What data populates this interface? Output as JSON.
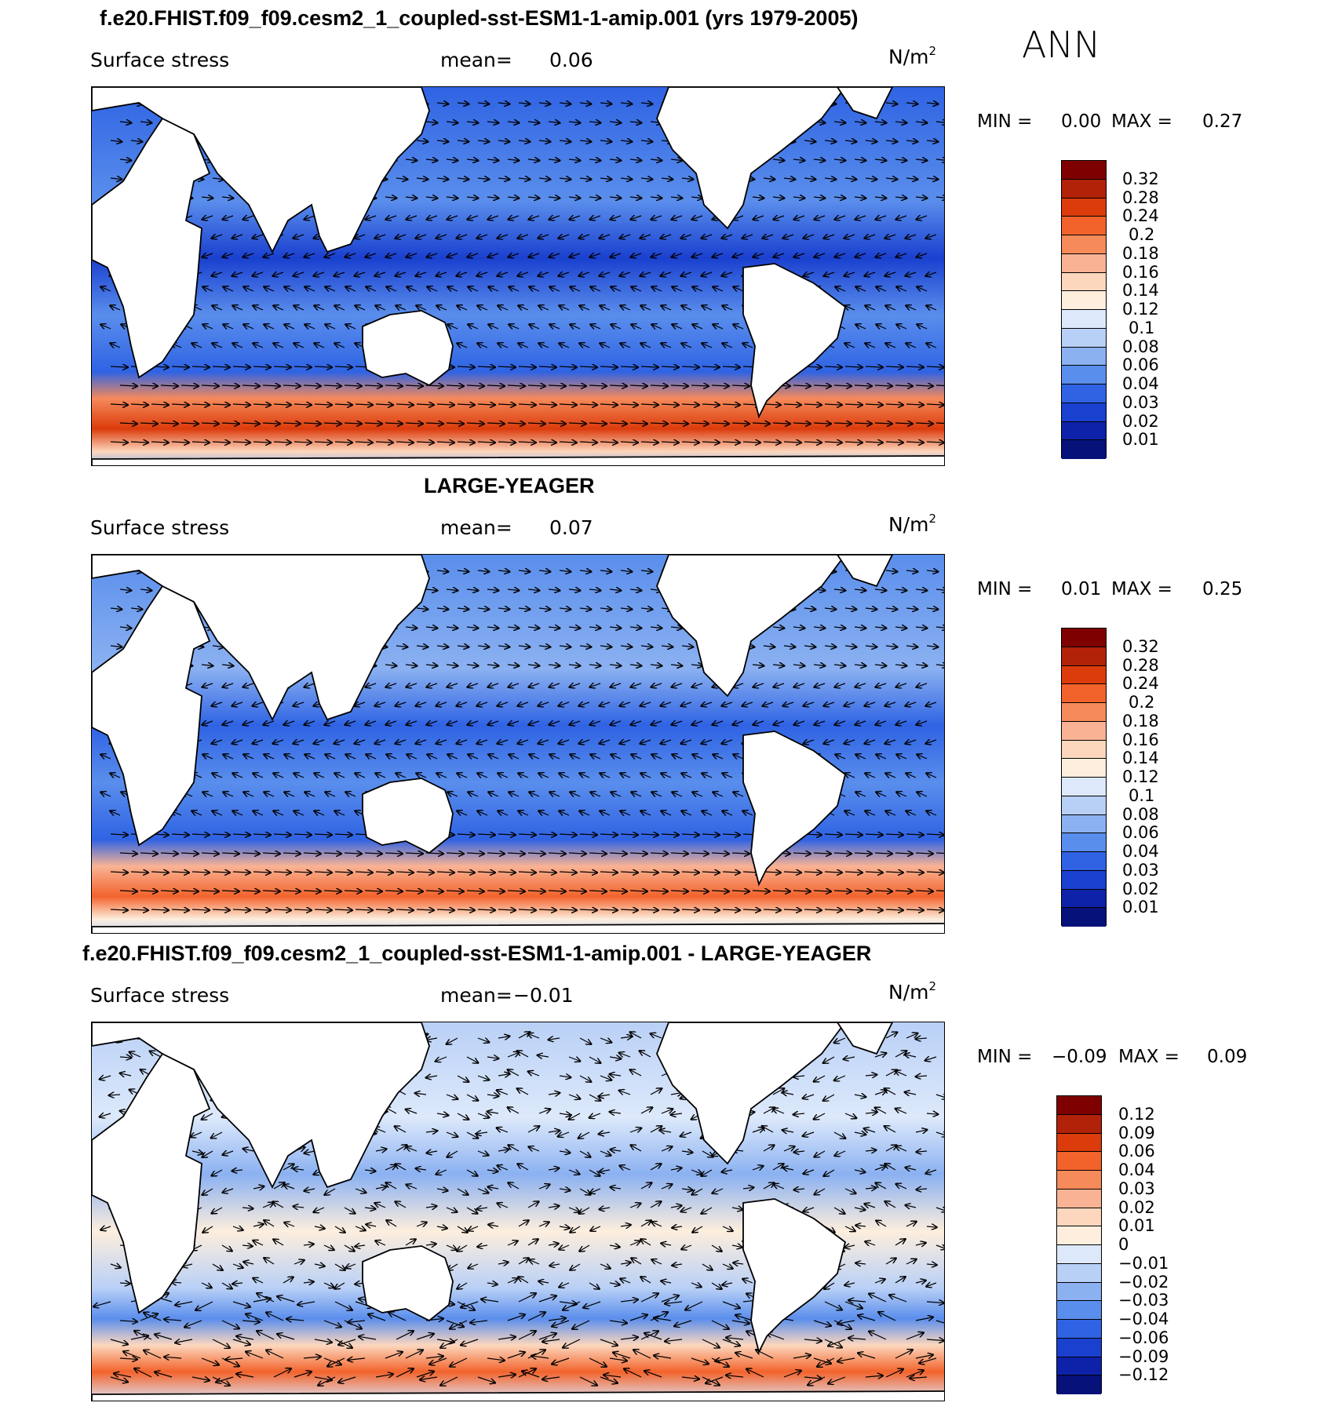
{
  "season": "ANN",
  "panels": [
    {
      "title": "f.e20.FHIST.f09_f09.cesm2_1_coupled-sst-ESM1-1-amip.001 (yrs 1979-2005)",
      "variable": "Surface stress",
      "mean_label": "mean=",
      "mean_value": "0.06",
      "units": "N/m",
      "units_exp": "2",
      "min_label": "MIN =",
      "min_value": "0.00",
      "max_label": "MAX =",
      "max_value": "0.27",
      "colorbar_ticks": [
        "0.32",
        "0.28",
        "0.24",
        "0.2",
        "0.18",
        "0.16",
        "0.14",
        "0.12",
        "0.1",
        "0.08",
        "0.06",
        "0.04",
        "0.03",
        "0.02",
        "0.01"
      ]
    },
    {
      "title": "LARGE-YEAGER",
      "variable": "Surface stress",
      "mean_label": "mean=",
      "mean_value": "0.07",
      "units": "N/m",
      "units_exp": "2",
      "min_label": "MIN =",
      "min_value": "0.01",
      "max_label": "MAX =",
      "max_value": "0.25",
      "colorbar_ticks": [
        "0.32",
        "0.28",
        "0.24",
        "0.2",
        "0.18",
        "0.16",
        "0.14",
        "0.12",
        "0.1",
        "0.08",
        "0.06",
        "0.04",
        "0.03",
        "0.02",
        "0.01"
      ]
    },
    {
      "title": "f.e20.FHIST.f09_f09.cesm2_1_coupled-sst-ESM1-1-amip.001 - LARGE-YEAGER",
      "variable": "Surface stress",
      "mean_label": "mean=",
      "mean_value": "−0.01",
      "units": "N/m",
      "units_exp": "2",
      "min_label": "MIN =",
      "min_value": "−0.09",
      "max_label": "MAX =",
      "max_value": "0.09",
      "colorbar_ticks": [
        "0.12",
        "0.09",
        "0.06",
        "0.04",
        "0.03",
        "0.02",
        "0.01",
        "0",
        "−0.01",
        "−0.02",
        "−0.03",
        "−0.04",
        "−0.06",
        "−0.09",
        "−0.12"
      ]
    }
  ],
  "colors": {
    "abs_scale": [
      "#7f0000",
      "#b22208",
      "#dc3b0c",
      "#f2632c",
      "#f58a5a",
      "#f9b394",
      "#fcd7be",
      "#fdeedd",
      "#dde9fb",
      "#b9d0f6",
      "#8bb1f1",
      "#5a8eec",
      "#2f63e3",
      "#1a40cf",
      "#0e22a9",
      "#06117a"
    ],
    "diff_scale": [
      "#7f0000",
      "#b22208",
      "#dc3b0c",
      "#f2632c",
      "#f58a5a",
      "#f9b394",
      "#fcd7be",
      "#fdeedd",
      "#dde9fb",
      "#b9d0f6",
      "#8bb1f1",
      "#5a8eec",
      "#2f63e3",
      "#1a40cf",
      "#0e22a9",
      "#06117a"
    ],
    "land": "#ffffff",
    "coast": "#000000"
  }
}
